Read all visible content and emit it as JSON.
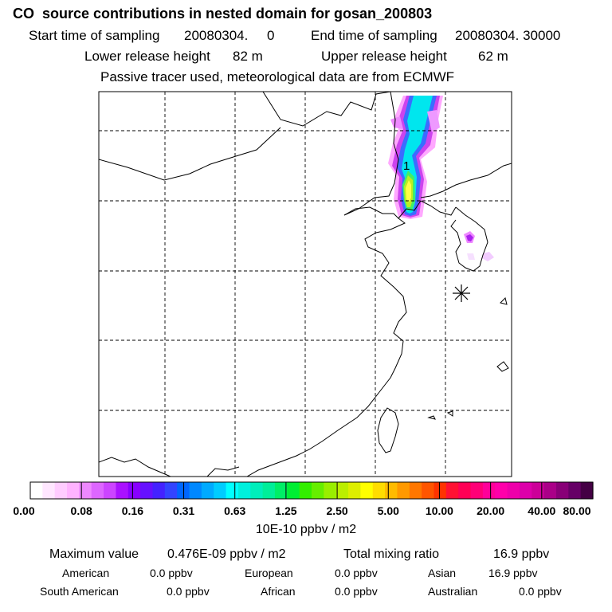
{
  "title": "CO  source contributions in nested domain for gosan_200803",
  "header": {
    "start_label": "Start time of sampling",
    "start_value": "20080304.     0",
    "end_label": "End time of sampling",
    "end_value": "20080304. 30000",
    "lower_label": "Lower release height",
    "lower_value": "82 m",
    "upper_label": "Upper release height",
    "upper_value": "62 m",
    "tracer_note": "Passive tracer used, meteorological data are from ECMWF"
  },
  "map": {
    "marker_label": "1",
    "receptor_symbol": "asterisk",
    "plume_colors": [
      "#ff99ff",
      "#cc33ee",
      "#3366ff",
      "#00ddee",
      "#00e0a0",
      "#99ee00",
      "#ffff33"
    ]
  },
  "colorbar": {
    "labels": [
      "0.00",
      "0.08",
      "0.16",
      "0.31",
      "0.63",
      "1.25",
      "2.50",
      "5.00",
      "10.00",
      "20.00",
      "40.00",
      "80.00"
    ],
    "colors": [
      "#ffffff",
      "#ffe6ff",
      "#ffccff",
      "#ffb3ff",
      "#ee88ff",
      "#dd66ff",
      "#cc44ff",
      "#aa11ff",
      "#8800ff",
      "#6611ff",
      "#4422ff",
      "#3344ff",
      "#0066ff",
      "#0088ff",
      "#00aaff",
      "#00ccff",
      "#00ffff",
      "#00f0dd",
      "#00eebb",
      "#00ee99",
      "#00ee66",
      "#00ee33",
      "#33ee00",
      "#66ee00",
      "#99ee00",
      "#bbee00",
      "#ddee00",
      "#ffff00",
      "#ffdd00",
      "#ffbb00",
      "#ff9900",
      "#ff7700",
      "#ff5500",
      "#ff3300",
      "#ff1133",
      "#ff0055",
      "#ff0077",
      "#ff0099",
      "#ff00aa",
      "#ee00aa",
      "#dd00aa",
      "#cc0099",
      "#aa0088",
      "#880077",
      "#660066",
      "#440044"
    ]
  },
  "unit_label": "10E-10 ppbv / m2",
  "stats": {
    "max_label": "Maximum value",
    "max_value": "0.476E-09 ppbv / m2",
    "total_label": "Total mixing ratio",
    "total_value": "16.9 ppbv",
    "regions": [
      {
        "name": "American",
        "value": "0.0 ppbv"
      },
      {
        "name": "European",
        "value": "0.0 ppbv"
      },
      {
        "name": "Asian",
        "value": "16.9 ppbv"
      },
      {
        "name": "South American",
        "value": "0.0 ppbv"
      },
      {
        "name": "African",
        "value": "0.0 ppbv"
      },
      {
        "name": "Australian",
        "value": "0.0 ppbv"
      }
    ]
  }
}
